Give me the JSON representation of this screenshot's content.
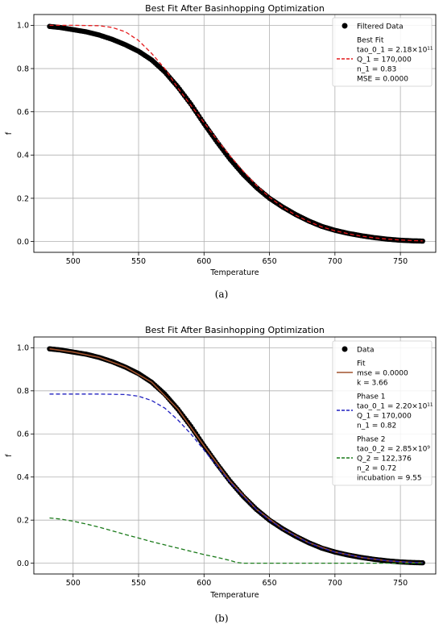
{
  "chart_data": [
    {
      "panel": "a",
      "caption": "(a)",
      "type": "scatter",
      "title": "Best Fit After Basinhopping Optimization",
      "xlabel": "Temperature",
      "ylabel": "f",
      "xlim": [
        470,
        777
      ],
      "ylim": [
        -0.05,
        1.05
      ],
      "xticks": [
        500,
        550,
        600,
        650,
        700,
        750
      ],
      "yticks": [
        0.0,
        0.2,
        0.4,
        0.6,
        0.8,
        1.0
      ],
      "grid": true,
      "legend_position": "top-right",
      "series": [
        {
          "name": "Filtered Data",
          "kind": "markers",
          "color": "#000000",
          "x": [
            482,
            490,
            500,
            510,
            520,
            530,
            540,
            550,
            560,
            570,
            580,
            590,
            600,
            610,
            620,
            630,
            640,
            650,
            660,
            670,
            680,
            690,
            700,
            710,
            720,
            730,
            740,
            750,
            760,
            767
          ],
          "y": [
            0.995,
            0.99,
            0.98,
            0.97,
            0.955,
            0.935,
            0.91,
            0.88,
            0.84,
            0.785,
            0.715,
            0.635,
            0.545,
            0.46,
            0.38,
            0.31,
            0.25,
            0.2,
            0.16,
            0.125,
            0.095,
            0.07,
            0.052,
            0.038,
            0.027,
            0.018,
            0.011,
            0.006,
            0.003,
            0.002
          ]
        },
        {
          "name": "Best Fit",
          "kind": "dashed-line",
          "color": "#e41a1c",
          "x": [
            482,
            500,
            520,
            530,
            540,
            550,
            560,
            570,
            580,
            590,
            600,
            610,
            620,
            630,
            640,
            650,
            660,
            670,
            680,
            690,
            700,
            710,
            720,
            730,
            740,
            750,
            760,
            767
          ],
          "y": [
            1.0,
            1.0,
            0.998,
            0.99,
            0.97,
            0.93,
            0.87,
            0.8,
            0.71,
            0.63,
            0.55,
            0.47,
            0.395,
            0.325,
            0.26,
            0.205,
            0.16,
            0.122,
            0.092,
            0.068,
            0.05,
            0.036,
            0.025,
            0.017,
            0.011,
            0.007,
            0.004,
            0.003
          ]
        }
      ],
      "legend": {
        "entries": [
          {
            "label": "Filtered Data",
            "marker": "dot",
            "color": "#000000",
            "lines": [
              "Filtered Data"
            ]
          },
          {
            "label": "Best Fit",
            "marker": "dash",
            "color": "#e41a1c",
            "lines": [
              "Best Fit",
              "tao_0_1 = 2.18×10¹¹",
              "Q_1 = 170,000",
              "n_1 = 0.83",
              "MSE = 0.0000"
            ]
          }
        ]
      }
    },
    {
      "panel": "b",
      "caption": "(b)",
      "type": "scatter",
      "title": "Best Fit After Basinhopping Optimization",
      "xlabel": "Temperature",
      "ylabel": "f",
      "xlim": [
        470,
        777
      ],
      "ylim": [
        -0.05,
        1.05
      ],
      "xticks": [
        500,
        550,
        600,
        650,
        700,
        750
      ],
      "yticks": [
        0.0,
        0.2,
        0.4,
        0.6,
        0.8,
        1.0
      ],
      "grid": true,
      "legend_position": "top-right",
      "series": [
        {
          "name": "Data",
          "kind": "markers",
          "color": "#000000",
          "x": [
            482,
            490,
            500,
            510,
            520,
            530,
            540,
            550,
            560,
            570,
            580,
            590,
            600,
            610,
            620,
            630,
            640,
            650,
            660,
            670,
            680,
            690,
            700,
            710,
            720,
            730,
            740,
            750,
            760,
            767
          ],
          "y": [
            0.995,
            0.99,
            0.98,
            0.97,
            0.955,
            0.935,
            0.91,
            0.88,
            0.84,
            0.785,
            0.715,
            0.635,
            0.545,
            0.46,
            0.38,
            0.31,
            0.25,
            0.2,
            0.16,
            0.125,
            0.095,
            0.07,
            0.052,
            0.038,
            0.027,
            0.018,
            0.011,
            0.006,
            0.003,
            0.002
          ]
        },
        {
          "name": "Fit",
          "kind": "solid-line",
          "color": "#a0522d",
          "x": [
            482,
            500,
            520,
            540,
            560,
            580,
            600,
            620,
            640,
            660,
            680,
            700,
            720,
            740,
            760,
            767
          ],
          "y": [
            0.995,
            0.98,
            0.955,
            0.91,
            0.84,
            0.715,
            0.545,
            0.38,
            0.25,
            0.16,
            0.095,
            0.052,
            0.027,
            0.011,
            0.003,
            0.002
          ]
        },
        {
          "name": "Phase 1",
          "kind": "dashed-line",
          "color": "#1f1fbf",
          "x": [
            482,
            500,
            520,
            540,
            550,
            560,
            570,
            580,
            590,
            600,
            610,
            620,
            630,
            640,
            650,
            660,
            670,
            680,
            690,
            700,
            720,
            740,
            760,
            767
          ],
          "y": [
            0.785,
            0.785,
            0.785,
            0.783,
            0.775,
            0.755,
            0.72,
            0.665,
            0.6,
            0.525,
            0.45,
            0.375,
            0.31,
            0.25,
            0.2,
            0.16,
            0.125,
            0.095,
            0.07,
            0.052,
            0.027,
            0.011,
            0.003,
            0.002
          ]
        },
        {
          "name": "Phase 2",
          "kind": "dashed-line",
          "color": "#1a7a1a",
          "x": [
            482,
            490,
            500,
            510,
            520,
            530,
            540,
            550,
            560,
            570,
            580,
            590,
            600,
            610,
            620,
            625,
            630,
            650,
            700,
            750,
            767
          ],
          "y": [
            0.21,
            0.205,
            0.195,
            0.182,
            0.167,
            0.15,
            0.133,
            0.117,
            0.1,
            0.085,
            0.07,
            0.055,
            0.04,
            0.027,
            0.013,
            0.003,
            0.0,
            0.0,
            0.0,
            0.0,
            0.0
          ]
        }
      ],
      "legend": {
        "entries": [
          {
            "label": "Data",
            "marker": "dot",
            "color": "#000000",
            "lines": [
              "Data"
            ]
          },
          {
            "label": "Fit",
            "marker": "solid",
            "color": "#a0522d",
            "lines": [
              "Fit",
              "mse = 0.0000",
              "k = 3.66"
            ]
          },
          {
            "label": "Phase 1",
            "marker": "dash",
            "color": "#1f1fbf",
            "lines": [
              "Phase 1",
              "tao_0_1 = 2.20×10¹¹",
              "Q_1 = 170,000",
              "n_1 = 0.82"
            ]
          },
          {
            "label": "Phase 2",
            "marker": "dash",
            "color": "#1a7a1a",
            "lines": [
              "Phase 2",
              "tao_0_2 = 2.85×10⁹",
              "Q_2 = 122,376",
              "n_2 = 0.72",
              "incubation = 9.55"
            ]
          }
        ]
      }
    }
  ]
}
